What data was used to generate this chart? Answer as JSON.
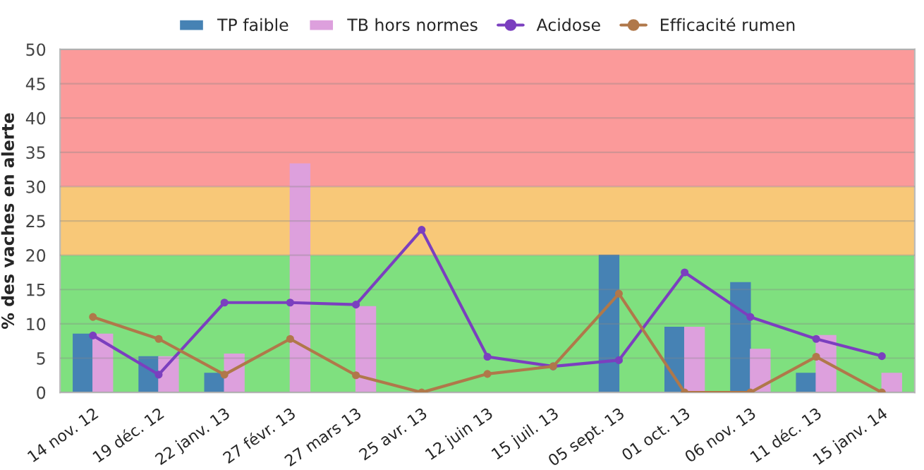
{
  "chart_data": {
    "type": "bar",
    "ylabel": "% des vaches en alerte",
    "categories": [
      "14 nov. 12",
      "19 déc. 12",
      "22 janv. 13",
      "27 févr. 13",
      "27 mars 13",
      "25 avr. 13",
      "12 juin 13",
      "15 juil. 13",
      "05 sept. 13",
      "01 oct. 13",
      "06 nov. 13",
      "11 déc. 13",
      "15 janv. 14"
    ],
    "series": [
      {
        "name": "TP faible",
        "color": "#4682b4",
        "values": [
          8.5,
          5.2,
          2.8,
          0,
          0,
          0,
          0,
          0,
          20,
          9.5,
          16,
          2.8,
          0
        ]
      },
      {
        "name": "TB hors normes",
        "color": "#dda0dd",
        "values": [
          8.5,
          5.2,
          5.6,
          33.3,
          12.5,
          0,
          0,
          0,
          0,
          9.5,
          6.3,
          8.3,
          2.8
        ]
      },
      {
        "name": "Acidose",
        "type": "line",
        "color": "#7b3fbf",
        "values": [
          8.3,
          2.6,
          13.1,
          13.1,
          12.8,
          23.7,
          5.2,
          3.8,
          4.7,
          17.5,
          11.0,
          7.8,
          5.3
        ]
      },
      {
        "name": "Efficacité rumen",
        "type": "line",
        "color": "#b0784a",
        "values": [
          11.0,
          7.8,
          2.6,
          7.8,
          2.5,
          0,
          2.7,
          3.8,
          14.4,
          0,
          0,
          5.2,
          0
        ]
      }
    ],
    "ylim": [
      0,
      50
    ],
    "yticks": [
      0,
      5,
      10,
      15,
      20,
      25,
      30,
      35,
      40,
      45,
      50
    ],
    "bands": [
      {
        "axis": "y",
        "from": 0,
        "to": 20,
        "color": "#7fe07f"
      },
      {
        "axis": "y",
        "from": 20,
        "to": 30,
        "color": "#f8c878"
      },
      {
        "axis": "y",
        "from": 30,
        "to": 50,
        "color": "#fb9a9a"
      }
    ],
    "grid": "y",
    "legend": "top",
    "marker": "circle",
    "line_style": "solid"
  }
}
